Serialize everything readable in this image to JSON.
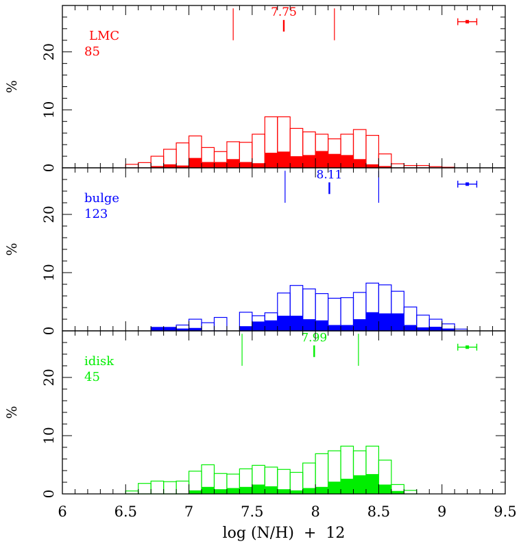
{
  "chart_data": {
    "type": "histogram",
    "xlabel": "log (N/H)  +  12",
    "xlim": [
      6,
      9.5
    ],
    "x_ticks": [
      "6",
      "6.5",
      "7",
      "7.5",
      "8",
      "8.5",
      "9",
      "9.5"
    ],
    "bin_edges": [
      6.5,
      6.6,
      6.7,
      6.8,
      6.9,
      7.0,
      7.1,
      7.2,
      7.3,
      7.4,
      7.5,
      7.6,
      7.7,
      7.8,
      7.9,
      8.0,
      8.1,
      8.2,
      8.3,
      8.4,
      8.5,
      8.6,
      8.7,
      8.8,
      8.9,
      9.0,
      9.1,
      9.2,
      9.3,
      9.4,
      9.5
    ],
    "panels": [
      {
        "name": "LMC",
        "count": "85",
        "color": "#ff0000",
        "ylabel": "%",
        "ylim": [
          0,
          28
        ],
        "y_ticks": [
          "0",
          "10",
          "20"
        ],
        "median": 7.75,
        "median_label": "7.75",
        "quartiles": [
          7.35,
          8.15
        ],
        "error_bar": {
          "x": 9.2,
          "xerr": 0.075,
          "y": 25.2
        },
        "open_values": [
          0.6,
          0.9,
          2.0,
          3.2,
          4.3,
          5.5,
          3.5,
          2.8,
          4.5,
          4.4,
          5.8,
          8.8,
          8.8,
          6.8,
          6.2,
          5.8,
          5.0,
          5.8,
          6.6,
          5.6,
          2.4,
          0.7,
          0.4,
          0.4,
          0.2,
          0.1,
          0.0,
          0.0,
          0.0,
          0.0
        ],
        "filled_values": [
          0.0,
          0.0,
          0.3,
          0.6,
          0.4,
          1.7,
          1.0,
          1.0,
          1.5,
          1.0,
          0.8,
          2.6,
          2.8,
          2.0,
          2.2,
          2.9,
          2.4,
          2.2,
          1.5,
          0.6,
          0.3,
          0.0,
          0.0,
          0.0,
          0.0,
          0.0,
          0.0,
          0.0,
          0.0,
          0.0
        ]
      },
      {
        "name": "bulge",
        "count": "123",
        "color": "#0000ff",
        "ylabel": "%",
        "ylim": [
          0,
          28
        ],
        "y_ticks": [
          "0",
          "10",
          "20"
        ],
        "median": 8.11,
        "median_label": "8.11",
        "quartiles": [
          7.76,
          8.5
        ],
        "error_bar": {
          "x": 9.2,
          "xerr": 0.075,
          "y": 25.2
        },
        "open_values": [
          0.0,
          0.0,
          0.6,
          0.6,
          1.0,
          2.0,
          1.4,
          2.3,
          0.0,
          3.2,
          2.6,
          3.1,
          6.5,
          7.8,
          7.2,
          6.4,
          5.6,
          5.7,
          6.6,
          8.2,
          7.9,
          6.8,
          4.1,
          2.7,
          2.0,
          1.2,
          0.3,
          0.0,
          0.0,
          0.0
        ],
        "filled_values": [
          0.0,
          0.0,
          0.6,
          0.6,
          0.4,
          0.5,
          0.0,
          0.0,
          0.0,
          0.8,
          1.6,
          1.8,
          2.6,
          2.6,
          2.0,
          1.8,
          1.0,
          1.0,
          2.0,
          3.2,
          3.0,
          3.0,
          1.0,
          0.6,
          0.7,
          0.4,
          0.0,
          0.0,
          0.0,
          0.0
        ]
      },
      {
        "name": "idisk",
        "count": "45",
        "color": "#00ee00",
        "ylabel": "%",
        "ylim": [
          0,
          28
        ],
        "y_ticks": [
          "0",
          "10",
          "20"
        ],
        "median": 7.99,
        "median_label": "7.99",
        "quartiles": [
          7.42,
          8.34
        ],
        "error_bar": {
          "x": 9.2,
          "xerr": 0.075,
          "y": 25.2
        },
        "open_values": [
          0.5,
          1.8,
          2.2,
          2.1,
          2.2,
          3.9,
          5.0,
          3.5,
          3.4,
          4.3,
          4.9,
          4.6,
          4.2,
          3.7,
          5.3,
          6.9,
          7.4,
          8.2,
          7.4,
          8.2,
          5.8,
          1.6,
          0.6,
          0.0,
          0.0,
          0.0,
          0.0,
          0.0,
          0.0,
          0.0
        ],
        "filled_values": [
          0.0,
          0.0,
          0.0,
          0.0,
          0.0,
          0.6,
          1.2,
          0.8,
          1.0,
          1.2,
          1.6,
          1.3,
          0.8,
          0.6,
          1.0,
          1.2,
          2.1,
          2.6,
          3.2,
          3.4,
          1.6,
          0.5,
          0.0,
          0.0,
          0.0,
          0.0,
          0.0,
          0.0,
          0.0,
          0.0
        ]
      }
    ]
  }
}
